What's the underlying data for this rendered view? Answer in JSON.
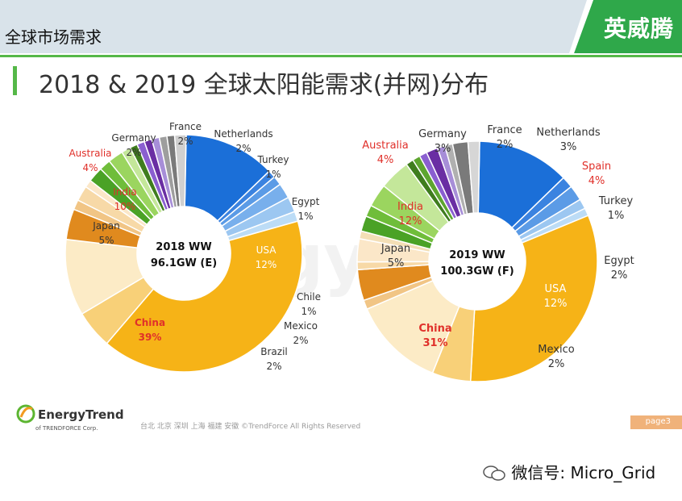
{
  "header": {
    "section_title": "全球市场需求",
    "brand": "英威腾",
    "slide_title": "2018 & 2019 全球太阳能需求(并网)分布"
  },
  "watermark": "EnergyTrend",
  "footer": {
    "logo_name": "EnergyTrend",
    "logo_sub": "of TRENDFORCE Corp.",
    "cities": "台北  北京  深圳  上海  福建  安徽     ©TrendForce All Rights Reserved",
    "page_tag": "page3"
  },
  "wechat_label": "微信号: Micro_Grid",
  "colors": {
    "topbar": "#d9e3ea",
    "green": "#55b848",
    "china": "#f6b317",
    "usa": "#1b6fd8",
    "highlight_red": "#e0302a"
  },
  "chart_data": [
    {
      "type": "pie",
      "donut": true,
      "center_label": [
        "2018 WW",
        "96.1GW (E)"
      ],
      "slices": [
        {
          "label": "USA",
          "value": 12,
          "pct": "12%",
          "color": "#1b6fd8"
        },
        {
          "label": "Chile",
          "value": 1,
          "pct": "1%",
          "color": "#3b83e0"
        },
        {
          "label": "",
          "value": 1.2,
          "color": "#5b9be6"
        },
        {
          "label": "Mexico",
          "value": 2,
          "pct": "2%",
          "color": "#78afec"
        },
        {
          "label": "Brazil",
          "value": 2,
          "pct": "2%",
          "color": "#9cc7f1"
        },
        {
          "label": "",
          "value": 1.3,
          "color": "#bcdcf6"
        },
        {
          "label": "China",
          "value": 39,
          "pct": "39%",
          "color": "#f6b317",
          "highlight": true
        },
        {
          "label": "Japan",
          "value": 5,
          "pct": "5%",
          "color": "#f8d078"
        },
        {
          "label": "India",
          "value": 10,
          "pct": "10%",
          "color": "#fcebc6",
          "highlight": true
        },
        {
          "label": "Australia",
          "value": 4,
          "pct": "4%",
          "color": "#e08a1e",
          "highlight": true
        },
        {
          "label": "",
          "value": 1.3,
          "color": "#f1c585"
        },
        {
          "label": "Germany",
          "value": 2,
          "pct": "2%",
          "color": "#f7d9a7"
        },
        {
          "label": "",
          "value": 1.0,
          "color": "#fbe7c8"
        },
        {
          "label": "France",
          "value": 2,
          "pct": "2%",
          "color": "#4aa226"
        },
        {
          "label": "",
          "value": 1.5,
          "color": "#6fbd3a"
        },
        {
          "label": "Netherlands",
          "value": 2,
          "pct": "2%",
          "color": "#9bd55f"
        },
        {
          "label": "",
          "value": 1.2,
          "color": "#c4e79a"
        },
        {
          "label": "",
          "value": 1.0,
          "color": "#3f7d1e"
        },
        {
          "label": "Turkey",
          "value": 1,
          "pct": "1%",
          "color": "#8a5fd0"
        },
        {
          "label": "",
          "value": 1.0,
          "color": "#6a2ea3"
        },
        {
          "label": "",
          "value": 1.0,
          "color": "#a78ed8"
        },
        {
          "label": "",
          "value": 1.0,
          "color": "#9e9e9e"
        },
        {
          "label": "Egypt",
          "value": 1,
          "pct": "1%",
          "color": "#7a7a7a"
        },
        {
          "label": "",
          "value": 1.5,
          "color": "#d0d0d0"
        }
      ]
    },
    {
      "type": "pie",
      "donut": true,
      "center_label": [
        "2019 WW",
        "100.3GW (F)"
      ],
      "slices": [
        {
          "label": "USA",
          "value": 12,
          "pct": "12%",
          "color": "#1b6fd8"
        },
        {
          "label": "",
          "value": 1.5,
          "color": "#3b83e0"
        },
        {
          "label": "Mexico",
          "value": 2,
          "pct": "2%",
          "color": "#5b9be6"
        },
        {
          "label": "",
          "value": 1.3,
          "color": "#9cc7f1"
        },
        {
          "label": "",
          "value": 1.0,
          "color": "#bcdcf6"
        },
        {
          "label": "China",
          "value": 31,
          "pct": "31%",
          "color": "#f6b317",
          "highlight": true
        },
        {
          "label": "Japan",
          "value": 5,
          "pct": "5%",
          "color": "#f8d078"
        },
        {
          "label": "India",
          "value": 12,
          "pct": "12%",
          "color": "#fcebc6",
          "highlight": true
        },
        {
          "label": "",
          "value": 1.2,
          "color": "#f1c585"
        },
        {
          "label": "Australia",
          "value": 4,
          "pct": "4%",
          "color": "#e08a1e",
          "highlight": true
        },
        {
          "label": "",
          "value": 1.0,
          "color": "#f7d9a7"
        },
        {
          "label": "Germany",
          "value": 3,
          "pct": "3%",
          "color": "#fbe7c8"
        },
        {
          "label": "",
          "value": 1.0,
          "color": "#f3dfb6"
        },
        {
          "label": "France",
          "value": 2,
          "pct": "2%",
          "color": "#4aa226"
        },
        {
          "label": "",
          "value": 1.5,
          "color": "#6fbd3a"
        },
        {
          "label": "Netherlands",
          "value": 3,
          "pct": "3%",
          "color": "#9bd55f"
        },
        {
          "label": "Spain",
          "value": 4,
          "pct": "4%",
          "color": "#c4e79a",
          "highlight": true
        },
        {
          "label": "",
          "value": 1.0,
          "color": "#3f7d1e"
        },
        {
          "label": "",
          "value": 1.0,
          "color": "#5da52f"
        },
        {
          "label": "Turkey",
          "value": 1,
          "pct": "1%",
          "color": "#8a5fd0"
        },
        {
          "label": "",
          "value": 1.5,
          "color": "#6a2ea3"
        },
        {
          "label": "",
          "value": 1.0,
          "color": "#a78ed8"
        },
        {
          "label": "",
          "value": 1.0,
          "color": "#b0b0b0"
        },
        {
          "label": "Egypt",
          "value": 2,
          "pct": "2%",
          "color": "#7a7a7a"
        },
        {
          "label": "",
          "value": 1.5,
          "color": "#d6d6d6"
        }
      ]
    }
  ]
}
